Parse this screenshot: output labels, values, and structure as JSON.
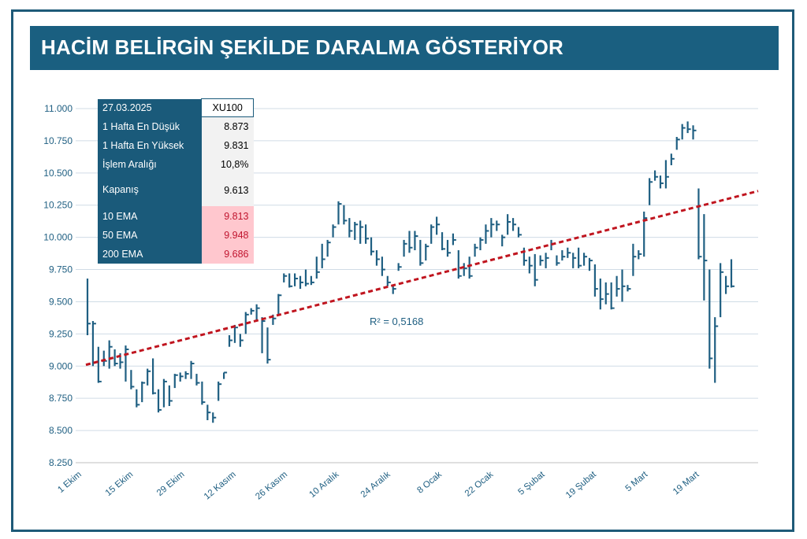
{
  "title": "HACİM BELİRGİN ŞEKİLDE DARALMA GÖSTERİYOR",
  "info_table": {
    "header": {
      "label": "27.03.2025",
      "value": "XU100"
    },
    "rows": [
      {
        "label": "1 Hafta En Düşük",
        "value": "8.873"
      },
      {
        "label": "1 Hafta En Yüksek",
        "value": "9.831"
      },
      {
        "label": "İşlem Aralığı",
        "value": "10,8%"
      },
      {
        "label": "Kapanış",
        "value": "9.613"
      },
      {
        "label": "10 EMA",
        "value": "9.813"
      },
      {
        "label": "50 EMA",
        "value": "9.948"
      },
      {
        "label": "200 EMA",
        "value": "9.686"
      }
    ]
  },
  "colors": {
    "title_bg": "#1a5f80",
    "bars": "#1f5f82",
    "trendline": "#c0151f",
    "axis_text": "#1f5f82",
    "ema_highlight": "#ffc7ce"
  },
  "chart_data": {
    "type": "ohlc",
    "title": "",
    "xlabel": "",
    "ylabel": "",
    "ylim": [
      8250,
      11000
    ],
    "y_ticks": [
      "8.250",
      "8.500",
      "8.750",
      "9.000",
      "9.250",
      "9.500",
      "9.750",
      "10.000",
      "10.250",
      "10.500",
      "10.750",
      "11.000"
    ],
    "y_tick_values": [
      8250,
      8500,
      8750,
      9000,
      9250,
      9500,
      9750,
      10000,
      10250,
      10500,
      10750,
      11000
    ],
    "x_labels": [
      "1 Ekim",
      "15 Ekim",
      "29 Ekim",
      "12 Kasım",
      "26 Kasım",
      "10 Aralık",
      "24 Aralık",
      "8 Ocak",
      "22 Ocak",
      "5 Şubat",
      "19 Şubat",
      "5 Mart",
      "19 Mart"
    ],
    "grid": true,
    "annotation": "R² = 0,5168",
    "trendline": {
      "start": 9010,
      "end": 10360
    },
    "bars": [
      [
        9680,
        9240,
        9330
      ],
      [
        9350,
        9000,
        9330
      ],
      [
        9150,
        8870,
        8880
      ],
      [
        9120,
        9000,
        9040
      ],
      [
        9200,
        8980,
        9150
      ],
      [
        9130,
        9000,
        9020
      ],
      [
        9100,
        8980,
        9030
      ],
      [
        9160,
        8880,
        9130
      ],
      [
        8970,
        8820,
        8840
      ],
      [
        8820,
        8680,
        8700
      ],
      [
        8880,
        8720,
        8870
      ],
      [
        8980,
        8850,
        8960
      ],
      [
        9060,
        8780,
        8790
      ],
      [
        8820,
        8640,
        8660
      ],
      [
        8900,
        8680,
        8880
      ],
      [
        8850,
        8690,
        8730
      ],
      [
        8940,
        8830,
        8930
      ],
      [
        8950,
        8880,
        8920
      ],
      [
        8960,
        8900,
        8940
      ],
      [
        9040,
        8900,
        9020
      ],
      [
        8940,
        8850,
        8870
      ],
      [
        8880,
        8700,
        8720
      ],
      [
        8700,
        8580,
        8640
      ],
      [
        8640,
        8560,
        8600
      ],
      [
        8880,
        8730,
        8860
      ],
      [
        8950,
        8900,
        8950
      ],
      [
        9240,
        9150,
        9200
      ],
      [
        9320,
        9180,
        9300
      ],
      [
        9250,
        9150,
        9200
      ],
      [
        9420,
        9250,
        9400
      ],
      [
        9450,
        9400,
        9430
      ],
      [
        9480,
        9350,
        9450
      ],
      [
        9380,
        9100,
        9350
      ],
      [
        9300,
        9020,
        9050
      ],
      [
        9400,
        9320,
        9370
      ],
      [
        9560,
        9400,
        9550
      ],
      [
        9720,
        9650,
        9700
      ],
      [
        9720,
        9610,
        9620
      ],
      [
        9720,
        9620,
        9680
      ],
      [
        9700,
        9600,
        9650
      ],
      [
        9750,
        9620,
        9640
      ],
      [
        9700,
        9630,
        9650
      ],
      [
        9850,
        9680,
        9730
      ],
      [
        9950,
        9760,
        9830
      ],
      [
        9980,
        9850,
        9960
      ],
      [
        10100,
        10000,
        10080
      ],
      [
        10280,
        10100,
        10260
      ],
      [
        10250,
        10100,
        10130
      ],
      [
        10150,
        10000,
        10050
      ],
      [
        10120,
        9980,
        10100
      ],
      [
        10130,
        9950,
        10080
      ],
      [
        10100,
        9950,
        9990
      ],
      [
        10000,
        9860,
        9890
      ],
      [
        9900,
        9780,
        9830
      ],
      [
        9850,
        9700,
        9750
      ],
      [
        9700,
        9620,
        9650
      ],
      [
        9620,
        9560,
        9600
      ],
      [
        9800,
        9740,
        9770
      ],
      [
        9980,
        9850,
        9950
      ],
      [
        10050,
        9880,
        9920
      ],
      [
        10050,
        9900,
        10010
      ],
      [
        9980,
        9780,
        9800
      ],
      [
        9950,
        9820,
        9930
      ],
      [
        10100,
        9950,
        10080
      ],
      [
        10160,
        10020,
        10100
      ],
      [
        10040,
        9900,
        9910
      ],
      [
        9980,
        9850,
        9880
      ],
      [
        10030,
        9940,
        9980
      ],
      [
        9900,
        9680,
        9700
      ],
      [
        9800,
        9700,
        9760
      ],
      [
        9850,
        9680,
        9700
      ],
      [
        9950,
        9850,
        9920
      ],
      [
        10000,
        9900,
        9980
      ],
      [
        10100,
        9950,
        10050
      ],
      [
        10150,
        10000,
        10100
      ],
      [
        10130,
        10050,
        10100
      ],
      [
        10020,
        9930,
        10000
      ],
      [
        10180,
        10020,
        10120
      ],
      [
        10150,
        10050,
        10100
      ],
      [
        10080,
        10000,
        10020
      ],
      [
        9920,
        9780,
        9820
      ],
      [
        9850,
        9720,
        9780
      ],
      [
        9870,
        9620,
        9670
      ],
      [
        9860,
        9780,
        9820
      ],
      [
        9880,
        9760,
        9840
      ],
      [
        9980,
        9900,
        9950
      ],
      [
        9860,
        9780,
        9800
      ],
      [
        9900,
        9820,
        9850
      ],
      [
        9920,
        9840,
        9880
      ],
      [
        9880,
        9760,
        9840
      ],
      [
        9920,
        9760,
        9780
      ],
      [
        9880,
        9780,
        9850
      ],
      [
        9840,
        9740,
        9820
      ],
      [
        9790,
        9540,
        9600
      ],
      [
        9680,
        9440,
        9520
      ],
      [
        9650,
        9480,
        9560
      ],
      [
        9650,
        9440,
        9450
      ],
      [
        9700,
        9540,
        9600
      ],
      [
        9750,
        9500,
        9620
      ],
      [
        9630,
        9580,
        9600
      ],
      [
        9950,
        9700,
        9850
      ],
      [
        9900,
        9830,
        9870
      ],
      [
        10200,
        9850,
        10150
      ],
      [
        10460,
        10250,
        10430
      ],
      [
        10520,
        10440,
        10470
      ],
      [
        10480,
        10380,
        10420
      ],
      [
        10600,
        10380,
        10470
      ],
      [
        10650,
        10560,
        10610
      ],
      [
        10780,
        10680,
        10760
      ],
      [
        10880,
        10760,
        10850
      ],
      [
        10900,
        10810,
        10840
      ],
      [
        10870,
        10760,
        10830
      ],
      [
        10380,
        9830,
        9850
      ],
      [
        10180,
        9510,
        9820
      ],
      [
        9750,
        8980,
        9060
      ],
      [
        9380,
        8870,
        9310
      ],
      [
        9800,
        9380,
        9730
      ],
      [
        9700,
        9560,
        9620
      ],
      [
        9830,
        9610,
        9620
      ]
    ]
  }
}
